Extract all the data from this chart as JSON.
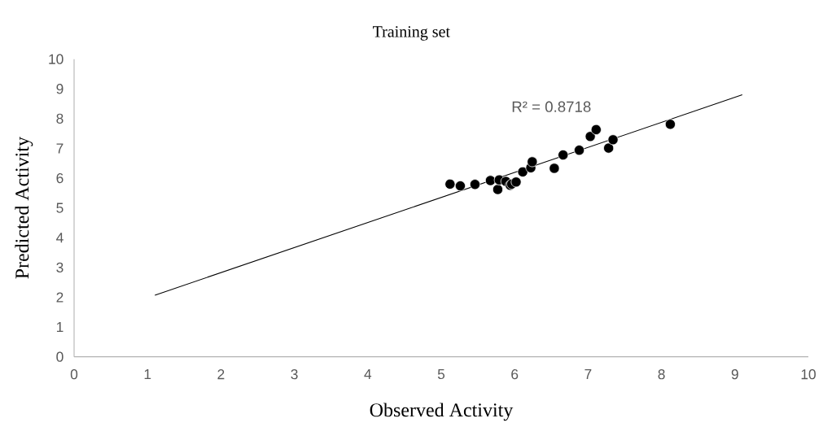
{
  "chart_data": {
    "type": "scatter",
    "title": "Training set",
    "xlabel": "Observed Activity",
    "ylabel": "Predicted Activity",
    "xlim": [
      0,
      10
    ],
    "ylim": [
      0,
      10
    ],
    "xticks": [
      0,
      1,
      2,
      3,
      4,
      5,
      6,
      7,
      8,
      9,
      10
    ],
    "yticks": [
      0,
      1,
      2,
      3,
      4,
      5,
      6,
      7,
      8,
      9,
      10
    ],
    "grid": false,
    "series": [
      {
        "color": "#000000",
        "marker": "circle",
        "x": [
          5.12,
          5.26,
          5.46,
          5.67,
          5.77,
          5.79,
          5.88,
          5.94,
          5.96,
          6.02,
          6.11,
          6.22,
          6.24,
          6.54,
          6.66,
          6.88,
          7.03,
          7.11,
          7.28,
          7.34,
          8.12
        ],
        "values": [
          5.8,
          5.74,
          5.79,
          5.92,
          5.62,
          5.94,
          5.89,
          5.76,
          5.8,
          5.87,
          6.21,
          6.35,
          6.55,
          6.33,
          6.78,
          6.94,
          7.4,
          7.63,
          7.01,
          7.29,
          7.81
        ]
      },
      {
        "type": "line",
        "marker": "none",
        "color": "#000000",
        "x": [
          1.1,
          9.1
        ],
        "values": [
          2.07,
          8.8
        ]
      }
    ],
    "annotations": [
      "R² = 0.8718"
    ]
  }
}
